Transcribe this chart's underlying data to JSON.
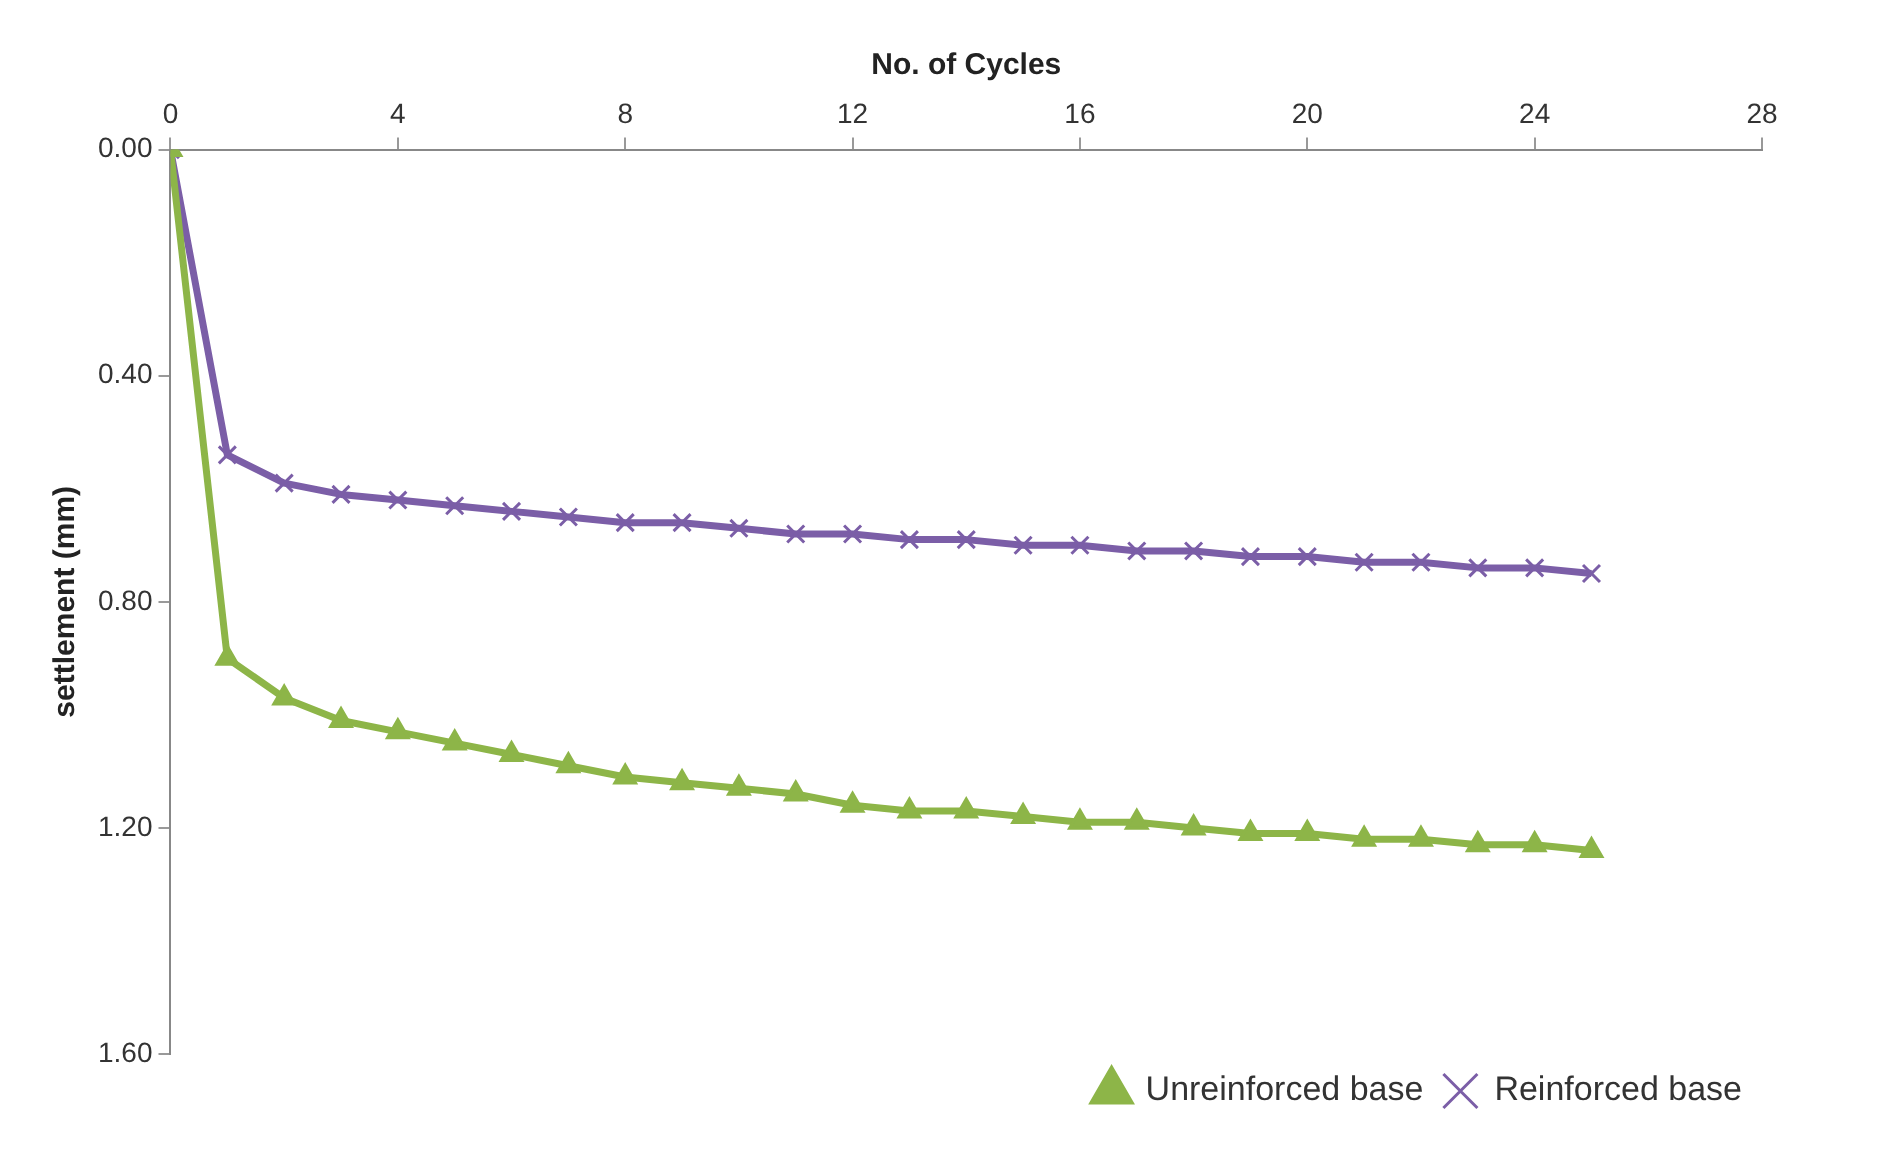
{
  "chart_data": {
    "type": "line",
    "xlabel": "No. of Cycles",
    "ylabel": "settlement (mm)",
    "x": [
      0,
      1,
      2,
      3,
      4,
      5,
      6,
      7,
      8,
      9,
      10,
      11,
      12,
      13,
      14,
      15,
      16,
      17,
      18,
      19,
      20,
      21,
      22,
      23,
      24,
      25
    ],
    "series": [
      {
        "name": "Unreinforced base",
        "color": "#8db548",
        "marker": "triangle",
        "values": [
          0,
          0.9,
          0.97,
          1.01,
          1.03,
          1.05,
          1.07,
          1.09,
          1.11,
          1.12,
          1.13,
          1.14,
          1.16,
          1.17,
          1.17,
          1.18,
          1.19,
          1.19,
          1.2,
          1.21,
          1.21,
          1.22,
          1.22,
          1.23,
          1.23,
          1.24
        ]
      },
      {
        "name": "Reinforced base",
        "color": "#7b5ea7",
        "marker": "cross",
        "values": [
          0,
          0.54,
          0.59,
          0.61,
          0.62,
          0.63,
          0.64,
          0.65,
          0.66,
          0.66,
          0.67,
          0.68,
          0.68,
          0.69,
          0.69,
          0.7,
          0.7,
          0.71,
          0.71,
          0.72,
          0.72,
          0.73,
          0.73,
          0.74,
          0.74,
          0.75
        ]
      }
    ],
    "xlim": [
      0,
      28
    ],
    "xticks": [
      0,
      4,
      8,
      12,
      16,
      20,
      24,
      28
    ],
    "ylim": [
      1.6,
      0
    ],
    "yticks": [
      {
        "value": 0,
        "label": "0.00"
      },
      {
        "value": 0.4,
        "label": "0.40"
      },
      {
        "value": 0.8,
        "label": "0.80"
      },
      {
        "value": 1.2,
        "label": "1.20"
      },
      {
        "value": 1.6,
        "label": "1.60"
      }
    ],
    "grid": false,
    "legend": "bottom right"
  }
}
